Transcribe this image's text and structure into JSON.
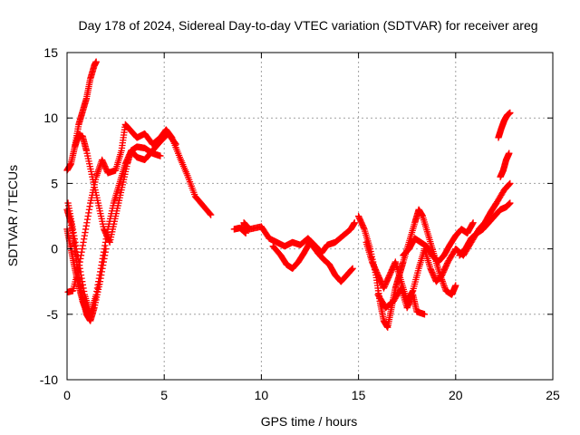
{
  "chart_data": {
    "type": "scatter",
    "title": "Day 178 of 2024, Sidereal Day-to-day VTEC variation (SDTVAR) for receiver areg",
    "xlabel": "GPS time / hours",
    "ylabel": "SDTVAR / TECUs",
    "xlim": [
      0,
      25
    ],
    "ylim": [
      -10,
      15
    ],
    "xticks": [
      "0",
      "5",
      "10",
      "15",
      "20",
      "25"
    ],
    "yticks": [
      "-10",
      "-5",
      "0",
      "5",
      "10",
      "15"
    ],
    "grid": true,
    "marker": "+",
    "color": "#ff0000",
    "series": [
      {
        "name": "trace-a",
        "points": [
          [
            0.05,
            -3.3
          ],
          [
            0.3,
            -3.2
          ],
          [
            0.6,
            -1.5
          ],
          [
            0.9,
            1.0
          ],
          [
            1.2,
            3.5
          ],
          [
            1.5,
            5.5
          ],
          [
            1.8,
            6.8
          ],
          [
            2.1,
            5.8
          ],
          [
            2.5,
            6.0
          ],
          [
            2.8,
            7.5
          ],
          [
            3.0,
            9.5
          ],
          [
            3.3,
            9.0
          ],
          [
            3.6,
            8.5
          ],
          [
            4.0,
            8.8
          ],
          [
            4.4,
            8.0
          ],
          [
            4.8,
            8.5
          ],
          [
            5.1,
            9.1
          ],
          [
            5.4,
            8.5
          ],
          [
            5.8,
            7.0
          ],
          [
            6.2,
            5.6
          ],
          [
            6.6,
            4.0
          ],
          [
            7.0,
            3.3
          ],
          [
            7.4,
            2.6
          ]
        ]
      },
      {
        "name": "trace-b",
        "points": [
          [
            0.0,
            6.0
          ],
          [
            0.2,
            6.5
          ],
          [
            0.4,
            7.8
          ],
          [
            0.6,
            8.7
          ],
          [
            0.8,
            8.6
          ],
          [
            1.0,
            7.5
          ],
          [
            1.3,
            5.5
          ],
          [
            1.6,
            3.5
          ],
          [
            1.9,
            1.5
          ],
          [
            2.2,
            0.5
          ],
          [
            2.5,
            2.5
          ],
          [
            2.8,
            4.5
          ],
          [
            3.1,
            6.5
          ],
          [
            3.3,
            7.5
          ],
          [
            3.6,
            7.8
          ],
          [
            4.0,
            7.7
          ],
          [
            4.4,
            7.3
          ],
          [
            4.8,
            7.1
          ]
        ]
      },
      {
        "name": "trace-c",
        "points": [
          [
            0.05,
            3.5
          ],
          [
            0.3,
            1.5
          ],
          [
            0.6,
            -1.0
          ],
          [
            0.9,
            -3.5
          ],
          [
            1.2,
            -5.0
          ],
          [
            1.5,
            -3.5
          ],
          [
            1.8,
            -1.0
          ],
          [
            2.1,
            1.5
          ],
          [
            2.4,
            3.5
          ],
          [
            2.7,
            5.0
          ],
          [
            3.0,
            6.5
          ],
          [
            3.3,
            7.5
          ],
          [
            3.6,
            7.0
          ],
          [
            4.0,
            6.8
          ],
          [
            4.4,
            7.5
          ],
          [
            4.8,
            8.2
          ],
          [
            5.2,
            8.8
          ],
          [
            5.6,
            8.0
          ]
        ]
      },
      {
        "name": "trace-d",
        "points": [
          [
            0.0,
            3.0
          ],
          [
            0.2,
            2.0
          ],
          [
            0.4,
            0.0
          ],
          [
            0.6,
            -2.0
          ],
          [
            0.8,
            -3.7
          ],
          [
            1.0,
            -5.0
          ],
          [
            1.2,
            -5.5
          ],
          [
            1.4,
            -4.5
          ],
          [
            1.7,
            -2.5
          ],
          [
            2.0,
            0.0
          ]
        ]
      },
      {
        "name": "trace-e",
        "points": [
          [
            0.4,
            7.8
          ],
          [
            0.6,
            9.5
          ],
          [
            0.8,
            10.5
          ],
          [
            1.0,
            11.5
          ],
          [
            1.2,
            13.0
          ],
          [
            1.4,
            14.0
          ],
          [
            1.5,
            14.3
          ]
        ]
      },
      {
        "name": "trace-f",
        "points": [
          [
            0.0,
            1.5
          ],
          [
            0.2,
            0.0
          ],
          [
            0.4,
            -1.5
          ],
          [
            0.6,
            -2.8
          ],
          [
            0.8,
            -4.0
          ],
          [
            1.0,
            -4.8
          ],
          [
            1.1,
            -5.2
          ]
        ]
      },
      {
        "name": "trace-g",
        "points": [
          [
            8.6,
            1.5
          ],
          [
            8.9,
            1.6
          ],
          [
            9.2,
            1.2
          ],
          [
            9.1,
            2.0
          ],
          [
            9.4,
            1.5
          ],
          [
            10.0,
            1.7
          ],
          [
            10.4,
            0.8
          ],
          [
            10.8,
            0.5
          ],
          [
            11.2,
            0.2
          ],
          [
            11.6,
            0.5
          ],
          [
            12.0,
            0.3
          ],
          [
            12.4,
            0.8
          ],
          [
            12.8,
            0.2
          ],
          [
            13.1,
            -0.3
          ],
          [
            13.4,
            0.3
          ],
          [
            13.8,
            0.5
          ],
          [
            14.2,
            1.0
          ],
          [
            14.6,
            1.5
          ],
          [
            14.8,
            2.0
          ]
        ]
      },
      {
        "name": "trace-h",
        "points": [
          [
            10.6,
            0.2
          ],
          [
            11.0,
            -0.5
          ],
          [
            11.3,
            -1.2
          ],
          [
            11.6,
            -1.5
          ],
          [
            11.9,
            -1.0
          ],
          [
            12.2,
            -0.3
          ],
          [
            12.5,
            0.5
          ],
          [
            12.9,
            -0.3
          ],
          [
            13.2,
            -0.8
          ],
          [
            13.5,
            -1.2
          ],
          [
            13.8,
            -2.0
          ],
          [
            14.1,
            -2.5
          ],
          [
            14.4,
            -2.0
          ],
          [
            14.7,
            -1.5
          ]
        ]
      },
      {
        "name": "trace-i",
        "points": [
          [
            15.0,
            2.5
          ],
          [
            15.3,
            1.5
          ],
          [
            15.6,
            0.0
          ],
          [
            15.9,
            -2.0
          ],
          [
            16.1,
            -4.0
          ],
          [
            16.3,
            -5.5
          ],
          [
            16.5,
            -6.0
          ],
          [
            16.7,
            -4.5
          ],
          [
            16.9,
            -3.0
          ],
          [
            17.1,
            -2.0
          ],
          [
            17.3,
            -1.0
          ],
          [
            17.6,
            0.5
          ],
          [
            17.9,
            2.0
          ],
          [
            18.1,
            3.0
          ],
          [
            18.3,
            2.5
          ],
          [
            18.6,
            1.0
          ],
          [
            18.9,
            -0.5
          ],
          [
            19.2,
            -2.0
          ],
          [
            19.5,
            -3.2
          ],
          [
            19.8,
            -3.5
          ],
          [
            20.0,
            -2.8
          ]
        ]
      },
      {
        "name": "trace-j",
        "points": [
          [
            15.4,
            0.5
          ],
          [
            15.7,
            -1.0
          ],
          [
            16.0,
            -2.0
          ],
          [
            16.3,
            -3.0
          ],
          [
            16.6,
            -2.0
          ],
          [
            16.9,
            -1.0
          ],
          [
            17.2,
            -2.5
          ],
          [
            17.5,
            -4.0
          ],
          [
            17.8,
            -3.2
          ],
          [
            18.1,
            -1.5
          ],
          [
            18.4,
            0.0
          ],
          [
            18.7,
            -1.5
          ],
          [
            19.0,
            -2.5
          ],
          [
            19.3,
            -2.0
          ],
          [
            19.6,
            -1.0
          ],
          [
            20.0,
            0.0
          ],
          [
            20.4,
            -0.5
          ],
          [
            20.8,
            0.5
          ],
          [
            21.2,
            1.5
          ],
          [
            21.5,
            2.0
          ],
          [
            21.8,
            2.8
          ],
          [
            22.1,
            3.5
          ],
          [
            22.5,
            4.5
          ],
          [
            22.8,
            5.0
          ]
        ]
      },
      {
        "name": "trace-k",
        "points": [
          [
            16.0,
            -3.5
          ],
          [
            16.4,
            -4.5
          ],
          [
            16.8,
            -4.0
          ],
          [
            17.2,
            -3.0
          ],
          [
            17.5,
            -4.5
          ],
          [
            17.8,
            -3.5
          ],
          [
            18.0,
            -4.8
          ],
          [
            18.4,
            -5.0
          ]
        ]
      },
      {
        "name": "trace-l",
        "points": [
          [
            17.3,
            -0.5
          ],
          [
            17.6,
            0.0
          ],
          [
            17.9,
            0.8
          ],
          [
            18.2,
            0.5
          ],
          [
            18.5,
            0.2
          ],
          [
            18.8,
            -0.5
          ],
          [
            19.1,
            -1.0
          ],
          [
            19.4,
            -0.5
          ],
          [
            19.7,
            0.3
          ],
          [
            20.0,
            1.0
          ],
          [
            20.3,
            1.5
          ],
          [
            20.6,
            1.2
          ],
          [
            20.9,
            2.0
          ]
        ]
      },
      {
        "name": "trace-m",
        "points": [
          [
            20.2,
            -0.5
          ],
          [
            20.5,
            0.0
          ],
          [
            20.8,
            0.8
          ],
          [
            21.1,
            1.2
          ],
          [
            21.4,
            1.5
          ],
          [
            21.7,
            2.0
          ],
          [
            22.0,
            2.5
          ],
          [
            22.3,
            3.0
          ],
          [
            22.6,
            3.2
          ],
          [
            22.8,
            3.5
          ]
        ]
      },
      {
        "name": "trace-n",
        "points": [
          [
            22.3,
            5.5
          ],
          [
            22.45,
            6.0
          ],
          [
            22.6,
            6.8
          ],
          [
            22.75,
            7.3
          ]
        ]
      },
      {
        "name": "trace-o",
        "points": [
          [
            22.2,
            8.5
          ],
          [
            22.35,
            9.2
          ],
          [
            22.5,
            9.8
          ],
          [
            22.65,
            10.2
          ],
          [
            22.8,
            10.4
          ]
        ]
      }
    ]
  }
}
